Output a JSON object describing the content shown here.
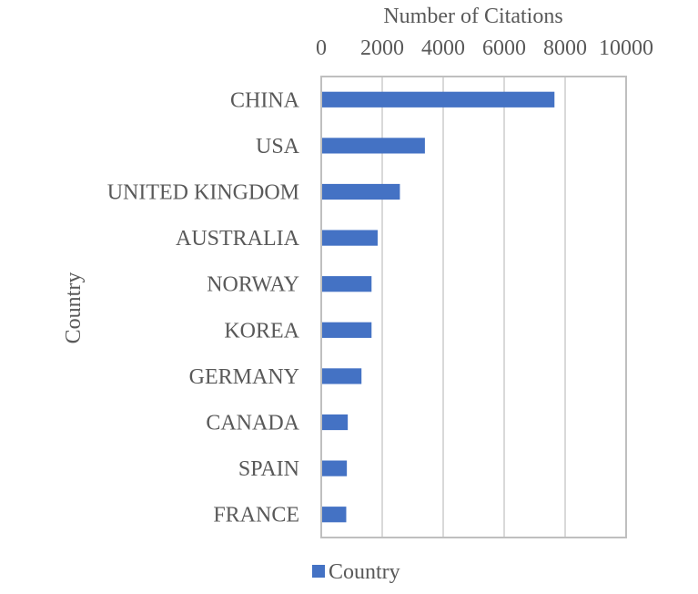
{
  "chart_data": {
    "type": "bar",
    "orientation": "horizontal",
    "title": "",
    "xlabel": "Number of Citations",
    "ylabel": "Country",
    "xlim": [
      0,
      10000
    ],
    "xticks": [
      0,
      2000,
      4000,
      6000,
      8000,
      10000
    ],
    "x_axis_position": "top",
    "grid": true,
    "legend": "bottom-left",
    "categories": [
      "CHINA",
      "USA",
      "UNITED KINGDOM",
      "AUSTRALIA",
      "NORWAY",
      "KOREA",
      "GERMANY",
      "CANADA",
      "SPAIN",
      "FRANCE"
    ],
    "series": [
      {
        "name": "Country",
        "color": "#4472C4",
        "values": [
          7650,
          3400,
          2580,
          1850,
          1650,
          1650,
          1320,
          870,
          840,
          820
        ]
      }
    ]
  }
}
